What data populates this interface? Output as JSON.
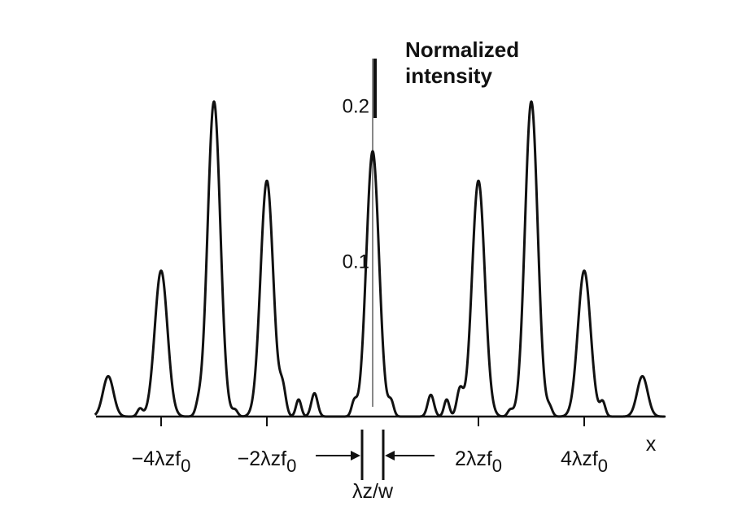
{
  "chart_data": {
    "type": "line",
    "title_lines": [
      "Normalized",
      "intensity"
    ],
    "xlabel": "x",
    "xlim": [
      -5,
      5.5
    ],
    "ylim": [
      0,
      0.24
    ],
    "y_ticks": [
      {
        "value": 0.2,
        "label": "0.2"
      },
      {
        "value": 0.1,
        "label": "0.1"
      }
    ],
    "x_ticks": [
      {
        "value": -4,
        "label": "−4λzf",
        "sub": "0"
      },
      {
        "value": -2,
        "label": "−2λzf",
        "sub": "0"
      },
      {
        "value": 2,
        "label": "2λzf",
        "sub": "0"
      },
      {
        "value": 4,
        "label": "4λzf",
        "sub": "0"
      }
    ],
    "annotation": {
      "label": "λz/w",
      "from": -0.2,
      "to": 0.2
    },
    "line_color": "#111111",
    "grid": false,
    "peaks": [
      {
        "x": -5.0,
        "y": 0.026,
        "w": 0.1
      },
      {
        "x": -4.4,
        "y": 0.005,
        "w": 0.05
      },
      {
        "x": -4.0,
        "y": 0.094,
        "w": 0.12
      },
      {
        "x": -3.3,
        "y": 0.005,
        "w": 0.05
      },
      {
        "x": -3.0,
        "y": 0.203,
        "w": 0.12
      },
      {
        "x": -2.6,
        "y": 0.004,
        "w": 0.05
      },
      {
        "x": -2.0,
        "y": 0.152,
        "w": 0.12
      },
      {
        "x": -1.7,
        "y": 0.017,
        "w": 0.06
      },
      {
        "x": -1.4,
        "y": 0.011,
        "w": 0.05
      },
      {
        "x": -1.1,
        "y": 0.015,
        "w": 0.06
      },
      {
        "x": -0.35,
        "y": 0.009,
        "w": 0.05
      },
      {
        "x": 0.0,
        "y": 0.171,
        "w": 0.12
      },
      {
        "x": 0.35,
        "y": 0.009,
        "w": 0.05
      },
      {
        "x": 1.1,
        "y": 0.014,
        "w": 0.06
      },
      {
        "x": 1.4,
        "y": 0.011,
        "w": 0.05
      },
      {
        "x": 1.65,
        "y": 0.017,
        "w": 0.06
      },
      {
        "x": 2.0,
        "y": 0.152,
        "w": 0.12
      },
      {
        "x": 2.6,
        "y": 0.004,
        "w": 0.05
      },
      {
        "x": 3.0,
        "y": 0.203,
        "w": 0.12
      },
      {
        "x": 3.35,
        "y": 0.005,
        "w": 0.05
      },
      {
        "x": 4.0,
        "y": 0.094,
        "w": 0.12
      },
      {
        "x": 4.35,
        "y": 0.009,
        "w": 0.05
      },
      {
        "x": 5.1,
        "y": 0.026,
        "w": 0.1
      }
    ]
  }
}
